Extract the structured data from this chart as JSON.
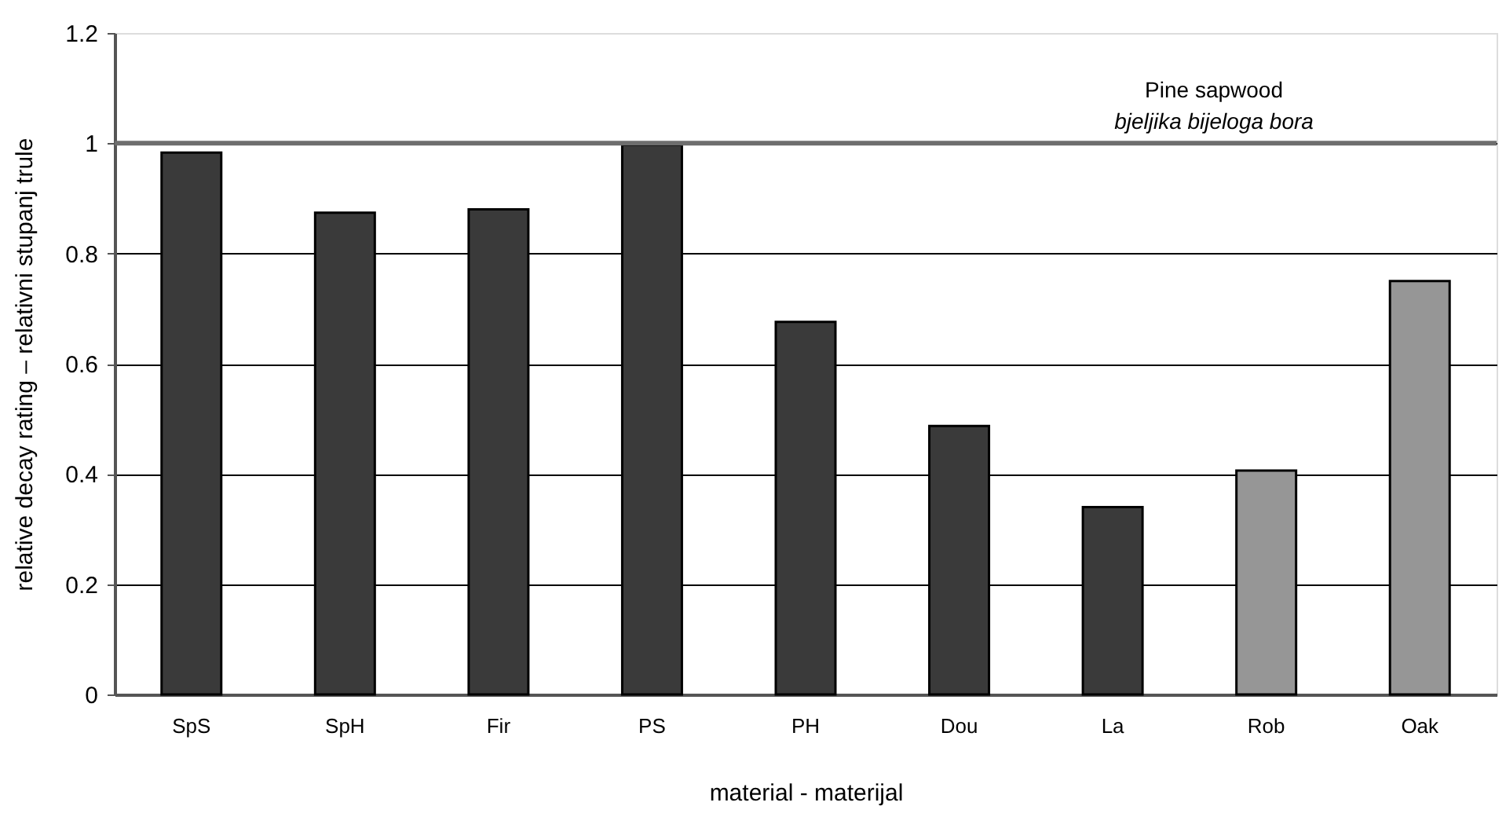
{
  "chart_data": {
    "type": "bar",
    "categories": [
      "SpS",
      "SpH",
      "Fir",
      "PS",
      "PH",
      "Dou",
      "La",
      "Rob",
      "Oak"
    ],
    "values": [
      0.983,
      0.874,
      0.88,
      0.997,
      0.676,
      0.487,
      0.34,
      0.406,
      0.75
    ],
    "colors": [
      "#3a3a3a",
      "#3a3a3a",
      "#3a3a3a",
      "#3a3a3a",
      "#3a3a3a",
      "#3a3a3a",
      "#3a3a3a",
      "#969696",
      "#969696"
    ],
    "xlabel": "material - materijal",
    "ylabel": "relative decay rating – relativni stupanj trule",
    "ylim": [
      0,
      1.2
    ],
    "yticks": [
      0,
      0.2,
      0.4,
      0.6,
      0.8,
      1,
      1.2
    ],
    "grid": "y",
    "ref_lines": [
      {
        "axis": "y",
        "value": 1,
        "label": "Pine sapwood\nbjeljika bijeloga bora",
        "color": "#6e6e6e"
      }
    ]
  }
}
